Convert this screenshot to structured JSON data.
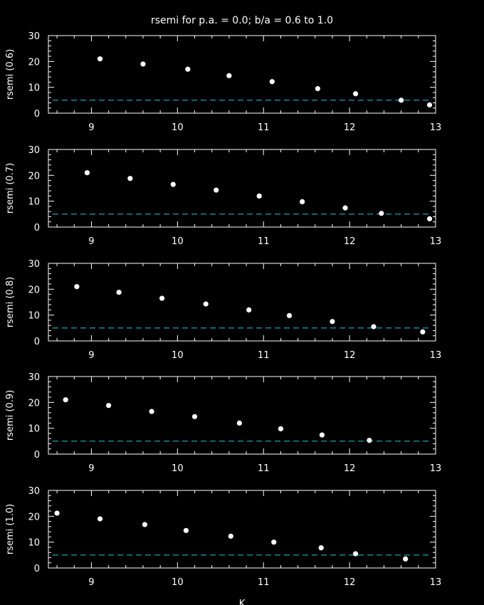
{
  "colors": {
    "background": "#000000",
    "foreground": "#ffffff",
    "reference_line": "#20b4c8"
  },
  "chart_data": {
    "type": "scatter",
    "title": "rsemi for p.a. = 0.0; b/a = 0.6 to 1.0",
    "xlabel": "K",
    "xlim": [
      8.5,
      13
    ],
    "ylim": [
      0,
      30
    ],
    "xticks": [
      9,
      10,
      11,
      12,
      13
    ],
    "yticks": [
      0,
      10,
      20,
      30
    ],
    "grid": false,
    "reference_line": {
      "y": 5,
      "style": "dashed"
    },
    "panels": [
      {
        "ylabel": "rsemi (0.6)",
        "points": [
          [
            9.1,
            21
          ],
          [
            9.6,
            19
          ],
          [
            10.12,
            17
          ],
          [
            10.6,
            14.5
          ],
          [
            11.1,
            12.2
          ],
          [
            11.63,
            9.5
          ],
          [
            12.07,
            7.5
          ],
          [
            12.6,
            5
          ],
          [
            12.93,
            3.2
          ]
        ]
      },
      {
        "ylabel": "rsemi (0.7)",
        "points": [
          [
            8.95,
            21
          ],
          [
            9.45,
            18.8
          ],
          [
            9.95,
            16.5
          ],
          [
            10.45,
            14.3
          ],
          [
            10.95,
            12
          ],
          [
            11.45,
            9.8
          ],
          [
            11.95,
            7.4
          ],
          [
            12.37,
            5.3
          ],
          [
            12.93,
            3.2
          ]
        ]
      },
      {
        "ylabel": "rsemi (0.8)",
        "points": [
          [
            8.83,
            21
          ],
          [
            9.32,
            18.8
          ],
          [
            9.82,
            16.5
          ],
          [
            10.33,
            14.3
          ],
          [
            10.83,
            12
          ],
          [
            11.3,
            9.8
          ],
          [
            11.8,
            7.5
          ],
          [
            12.28,
            5.5
          ],
          [
            12.85,
            3.5
          ]
        ]
      },
      {
        "ylabel": "rsemi (0.9)",
        "points": [
          [
            8.7,
            21
          ],
          [
            9.2,
            18.8
          ],
          [
            9.7,
            16.5
          ],
          [
            10.2,
            14.5
          ],
          [
            10.72,
            12
          ],
          [
            11.2,
            9.8
          ],
          [
            11.68,
            7.4
          ],
          [
            12.23,
            5.3
          ]
        ]
      },
      {
        "ylabel": "rsemi (1.0)",
        "points": [
          [
            8.6,
            21.2
          ],
          [
            9.1,
            19
          ],
          [
            9.62,
            16.8
          ],
          [
            10.1,
            14.5
          ],
          [
            10.62,
            12.3
          ],
          [
            11.12,
            10
          ],
          [
            11.67,
            7.8
          ],
          [
            12.07,
            5.5
          ],
          [
            12.65,
            3.5
          ]
        ]
      }
    ]
  }
}
